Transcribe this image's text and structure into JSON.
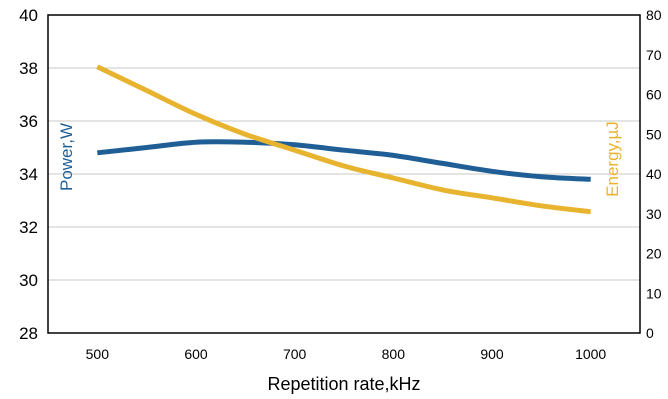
{
  "chart_data": {
    "type": "line",
    "xlabel": "Repetition rate,kHz",
    "ylabel_left": "Power,W",
    "ylabel_right": "Energy,µJ",
    "x_ticks": [
      500,
      600,
      700,
      800,
      900,
      1000
    ],
    "y_left_ticks": [
      28,
      30,
      32,
      34,
      36,
      38,
      40
    ],
    "y_right_ticks": [
      0,
      10,
      20,
      30,
      40,
      50,
      60,
      70,
      80
    ],
    "xlim": [
      450,
      1050
    ],
    "ylim_left": [
      28,
      40
    ],
    "ylim_right": [
      0,
      80
    ],
    "grid": "horizontal",
    "series": [
      {
        "name": "Power,W",
        "axis": "left",
        "color": "#1f5f96",
        "x": [
          500,
          550,
          600,
          650,
          700,
          750,
          800,
          850,
          900,
          950,
          1000
        ],
        "y": [
          34.8,
          35.0,
          35.2,
          35.2,
          35.1,
          34.9,
          34.7,
          34.4,
          34.1,
          33.9,
          33.8
        ]
      },
      {
        "name": "Energy,µJ",
        "axis": "right",
        "color": "#e8b430",
        "x": [
          500,
          550,
          600,
          650,
          700,
          750,
          800,
          850,
          900,
          950,
          1000
        ],
        "y": [
          67,
          61,
          55,
          50,
          46,
          42,
          39,
          36,
          34,
          32,
          30.5
        ]
      }
    ]
  }
}
